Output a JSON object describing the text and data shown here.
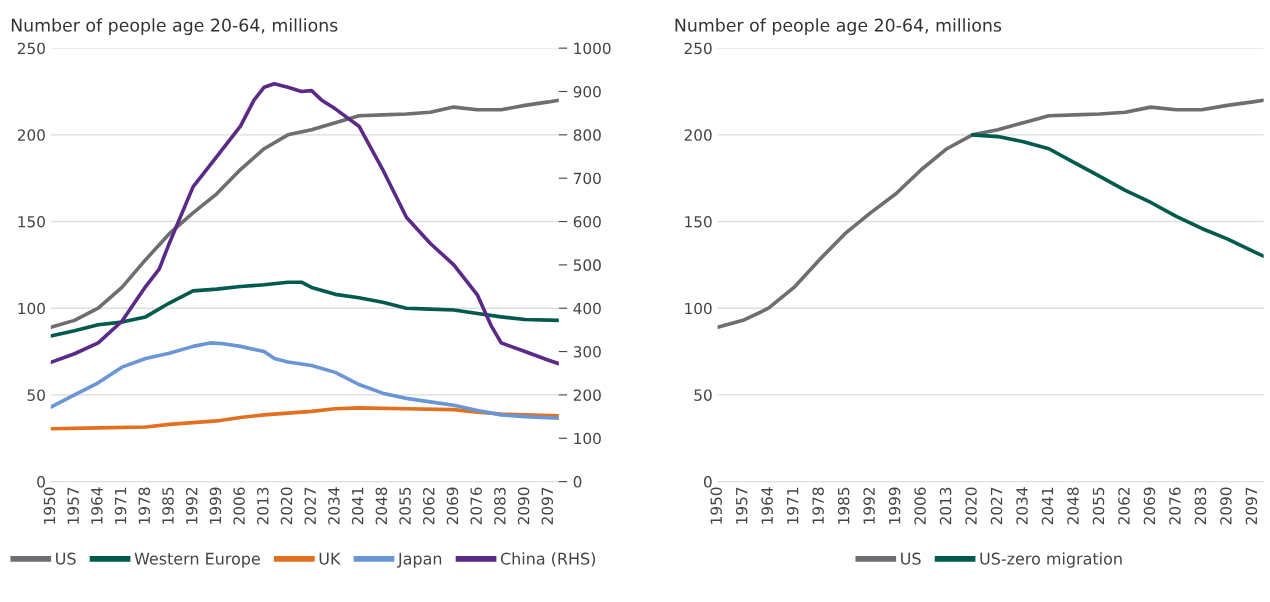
{
  "chart_data": [
    {
      "type": "line",
      "title": "Number of people age 20-64, millions",
      "xlim": [
        1950,
        2100
      ],
      "xticks": [
        1950,
        1957,
        1964,
        1971,
        1978,
        1985,
        1992,
        1999,
        2006,
        2013,
        2020,
        2027,
        2034,
        2041,
        2048,
        2055,
        2062,
        2069,
        2076,
        2083,
        2090,
        2097
      ],
      "ylim": [
        0,
        250
      ],
      "yticks": [
        0,
        50,
        100,
        150,
        200,
        250
      ],
      "y2lim": [
        0,
        1000
      ],
      "y2ticks": [
        0,
        100,
        200,
        300,
        400,
        500,
        600,
        700,
        800,
        900,
        1000
      ],
      "grid": "y",
      "legend": "bottom",
      "marker": "none",
      "line_style": "solid",
      "series": [
        {
          "name": "US",
          "color": "#6d6e71",
          "x": [
            1950,
            1957,
            1964,
            1971,
            1978,
            1985,
            1992,
            1999,
            2006,
            2013,
            2020,
            2027,
            2034,
            2041,
            2048,
            2055,
            2062,
            2069,
            2076,
            2083,
            2090,
            2097,
            2100
          ],
          "values": [
            89,
            93,
            100,
            112,
            128,
            143,
            155,
            166,
            180,
            192,
            200,
            203,
            207,
            211,
            211.5,
            212,
            213,
            216,
            214.5,
            214.5,
            217,
            219,
            220
          ]
        },
        {
          "name": "Western Europe",
          "color": "#005a4e",
          "x": [
            1950,
            1957,
            1964,
            1971,
            1978,
            1985,
            1992,
            1999,
            2006,
            2013,
            2020,
            2024,
            2027,
            2034,
            2041,
            2048,
            2055,
            2062,
            2069,
            2076,
            2083,
            2090,
            2100
          ],
          "values": [
            84,
            87,
            90.5,
            92,
            95,
            103,
            110,
            111,
            112.5,
            113.5,
            115,
            115,
            112,
            108,
            106,
            103.5,
            100,
            99.5,
            99,
            97,
            95,
            93.5,
            93
          ]
        },
        {
          "name": "UK",
          "color": "#e2701f",
          "x": [
            1950,
            1964,
            1978,
            1985,
            1999,
            2006,
            2013,
            2020,
            2027,
            2034,
            2041,
            2055,
            2069,
            2076,
            2083,
            2100
          ],
          "values": [
            30.5,
            31,
            31.5,
            33,
            35,
            37,
            38.5,
            39.5,
            40.5,
            42,
            42.5,
            42,
            41.5,
            40,
            39,
            38
          ]
        },
        {
          "name": "Japan",
          "color": "#6b96d6",
          "x": [
            1950,
            1957,
            1964,
            1971,
            1978,
            1985,
            1992,
            1997,
            2001,
            2006,
            2013,
            2016,
            2020,
            2027,
            2034,
            2041,
            2048,
            2055,
            2062,
            2069,
            2076,
            2083,
            2090,
            2100
          ],
          "values": [
            43,
            50,
            57,
            66,
            71,
            74,
            78,
            80,
            79.5,
            78,
            75,
            71,
            69,
            67,
            63,
            56,
            51,
            48,
            46,
            44,
            41,
            38.5,
            37.5,
            36.5
          ]
        },
        {
          "name": "China (RHS)",
          "color": "#5b2a86",
          "axis": "y2",
          "x": [
            1950,
            1957,
            1964,
            1971,
            1978,
            1982,
            1985,
            1992,
            1999,
            2006,
            2010,
            2013,
            2016,
            2020,
            2024,
            2027,
            2030,
            2034,
            2041,
            2048,
            2055,
            2062,
            2069,
            2076,
            2080,
            2083,
            2090,
            2097,
            2100
          ],
          "values": [
            275,
            295,
            320,
            370,
            450,
            490,
            550,
            680,
            750,
            820,
            880,
            910,
            918,
            910,
            900,
            902,
            880,
            860,
            820,
            720,
            610,
            550,
            500,
            430,
            360,
            320,
            300,
            280,
            272
          ]
        }
      ]
    },
    {
      "type": "line",
      "title": "Number of people age 20-64, millions",
      "xlim": [
        1950,
        2100
      ],
      "xticks": [
        1950,
        1957,
        1964,
        1971,
        1978,
        1985,
        1992,
        1999,
        2006,
        2013,
        2020,
        2027,
        2034,
        2041,
        2048,
        2055,
        2062,
        2069,
        2076,
        2083,
        2090,
        2097
      ],
      "ylim": [
        0,
        250
      ],
      "yticks": [
        0,
        50,
        100,
        150,
        200,
        250
      ],
      "grid": "y",
      "legend": "bottom",
      "marker": "none",
      "line_style": "solid",
      "series": [
        {
          "name": "US",
          "color": "#6d6e71",
          "x": [
            1950,
            1957,
            1964,
            1971,
            1978,
            1985,
            1992,
            1999,
            2006,
            2013,
            2020,
            2027,
            2034,
            2041,
            2048,
            2055,
            2062,
            2069,
            2076,
            2083,
            2090,
            2097,
            2100
          ],
          "values": [
            89,
            93,
            100,
            112,
            128,
            143,
            155,
            166,
            180,
            192,
            200,
            203,
            207,
            211,
            211.5,
            212,
            213,
            216,
            214.5,
            214.5,
            217,
            219,
            220
          ]
        },
        {
          "name": "US-zero migration",
          "color": "#005a4e",
          "x": [
            2020,
            2027,
            2034,
            2041,
            2048,
            2055,
            2062,
            2069,
            2076,
            2083,
            2090,
            2097,
            2100
          ],
          "values": [
            200,
            199,
            196,
            192,
            184,
            176,
            168,
            161,
            153,
            146,
            140,
            133,
            130
          ]
        }
      ]
    }
  ]
}
